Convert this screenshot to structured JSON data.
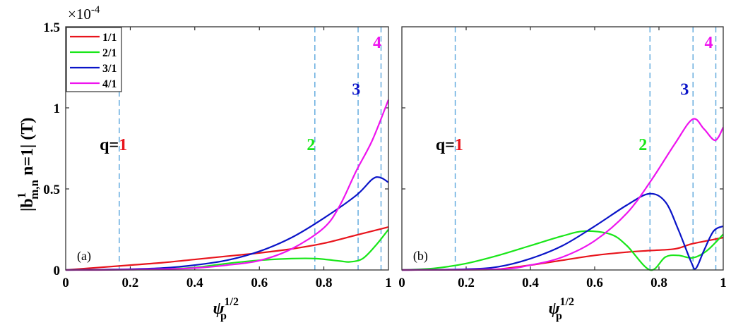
{
  "chart_data": {
    "type": "line",
    "ylabel_main": "|b",
    "ylabel_sup": "1",
    "ylabel_sub": "m,n",
    "ylabel_rest": " n=1| (T)",
    "xlabel_main": "ψ",
    "xlabel_sub": "p",
    "xlabel_sup": "1/2",
    "y_multiplier_base": "×10",
    "y_multiplier_exp": "-4",
    "xlim": [
      0,
      1
    ],
    "ylim": [
      0,
      1.5
    ],
    "xticks": [
      "0",
      "0.2",
      "0.4",
      "0.6",
      "0.8",
      "1"
    ],
    "xtick_values": [
      0,
      0.2,
      0.4,
      0.6,
      0.8,
      1
    ],
    "yticks": [
      "0",
      "0.5",
      "1",
      "1.5"
    ],
    "ytick_values": [
      0,
      0.5,
      1,
      1.5
    ],
    "legend": {
      "placement": "top-left",
      "entries": [
        {
          "label": "1/1",
          "color": "#e8141c"
        },
        {
          "label": "2/1",
          "color": "#19e619"
        },
        {
          "label": "3/1",
          "color": "#0a14c8"
        },
        {
          "label": "4/1",
          "color": "#ee14ee"
        }
      ]
    },
    "rational_surfaces": {
      "color": "#5aa6dc",
      "x": [
        0.166,
        0.772,
        0.906,
        0.977
      ],
      "prefix": "q=",
      "labels": [
        {
          "text": "1",
          "color": "#e8141c"
        },
        {
          "text": "2",
          "color": "#19e619"
        },
        {
          "text": "3",
          "color": "#0a14c8"
        },
        {
          "text": "4",
          "color": "#ee14ee"
        }
      ]
    },
    "panels": [
      {
        "label": "(a)",
        "series": [
          {
            "name": "1/1",
            "x": [
              0,
              0.1,
              0.2,
              0.3,
              0.4,
              0.5,
              0.6,
              0.7,
              0.8,
              0.9,
              1
            ],
            "y": [
              0,
              0.015,
              0.03,
              0.045,
              0.065,
              0.085,
              0.105,
              0.13,
              0.165,
              0.215,
              0.265
            ]
          },
          {
            "name": "2/1",
            "x": [
              0,
              0.2,
              0.3,
              0.4,
              0.5,
              0.6,
              0.7,
              0.775,
              0.85,
              0.88,
              0.92,
              0.96,
              1
            ],
            "y": [
              0,
              0.003,
              0.006,
              0.015,
              0.04,
              0.06,
              0.07,
              0.07,
              0.055,
              0.05,
              0.07,
              0.15,
              0.25
            ]
          },
          {
            "name": "3/1",
            "x": [
              0,
              0.1,
              0.2,
              0.3,
              0.4,
              0.5,
              0.6,
              0.7,
              0.8,
              0.9,
              0.95,
              0.975,
              1
            ],
            "y": [
              0,
              0.002,
              0.005,
              0.012,
              0.03,
              0.06,
              0.115,
              0.2,
              0.32,
              0.46,
              0.56,
              0.57,
              0.54
            ]
          },
          {
            "name": "4/1",
            "x": [
              0,
              0.1,
              0.2,
              0.3,
              0.4,
              0.5,
              0.6,
              0.7,
              0.8,
              0.85,
              0.9,
              0.95,
              1
            ],
            "y": [
              0,
              0,
              0.002,
              0.005,
              0.012,
              0.03,
              0.058,
              0.13,
              0.26,
              0.4,
              0.61,
              0.8,
              1.05
            ]
          }
        ],
        "annotations": [
          {
            "x": 0.17,
            "y": 0.74
          },
          {
            "x": 0.76,
            "y": 0.74
          },
          {
            "x": 0.9,
            "y": 1.08
          },
          {
            "x": 0.965,
            "y": 1.37
          }
        ]
      },
      {
        "label": "(b)",
        "series": [
          {
            "name": "1/1",
            "x": [
              0,
              0.2,
              0.3,
              0.4,
              0.5,
              0.6,
              0.7,
              0.775,
              0.85,
              0.9,
              0.95,
              1
            ],
            "y": [
              0,
              0.002,
              0.005,
              0.03,
              0.06,
              0.09,
              0.11,
              0.12,
              0.13,
              0.16,
              0.18,
              0.2
            ]
          },
          {
            "name": "2/1",
            "x": [
              0,
              0.1,
              0.2,
              0.3,
              0.4,
              0.5,
              0.57,
              0.65,
              0.7,
              0.772,
              0.82,
              0.86,
              0.905,
              0.95,
              1
            ],
            "y": [
              0,
              0.01,
              0.04,
              0.09,
              0.15,
              0.21,
              0.24,
              0.22,
              0.15,
              0,
              0.08,
              0.09,
              0.075,
              0.12,
              0.22
            ]
          },
          {
            "name": "3/1",
            "x": [
              0,
              0.2,
              0.3,
              0.4,
              0.5,
              0.6,
              0.7,
              0.77,
              0.82,
              0.86,
              0.9,
              0.915,
              0.94,
              0.97,
              1
            ],
            "y": [
              0,
              0.005,
              0.02,
              0.07,
              0.15,
              0.27,
              0.4,
              0.47,
              0.42,
              0.25,
              0.05,
              0.01,
              0.12,
              0.24,
              0.27
            ]
          },
          {
            "name": "4/1",
            "x": [
              0,
              0.3,
              0.4,
              0.5,
              0.6,
              0.7,
              0.775,
              0.85,
              0.905,
              0.94,
              0.975,
              1
            ],
            "y": [
              0,
              0.005,
              0.03,
              0.08,
              0.18,
              0.35,
              0.55,
              0.78,
              0.93,
              0.87,
              0.8,
              0.88
            ]
          }
        ],
        "annotations": [
          {
            "x": 0.17,
            "y": 0.74
          },
          {
            "x": 0.75,
            "y": 0.74
          },
          {
            "x": 0.88,
            "y": 1.08
          },
          {
            "x": 0.955,
            "y": 1.37
          }
        ]
      }
    ]
  }
}
